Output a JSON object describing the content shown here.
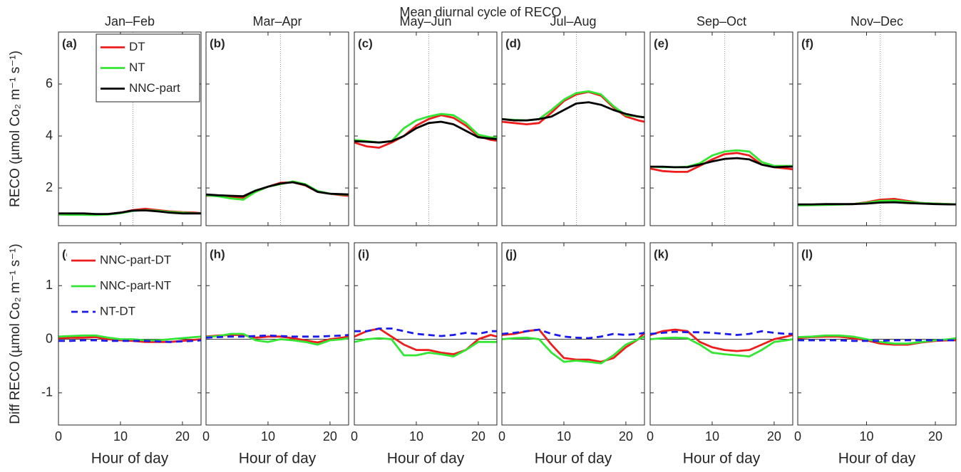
{
  "title": "Mean diurnal cycle of RECO",
  "chart_data": [
    {
      "type": "line",
      "title": "Jan–Feb",
      "tag": "(a)",
      "ylabel": "RECO (µmol Co₂ m⁻¹ s⁻¹)",
      "legend": "upper right",
      "vline": 12,
      "x": [
        0,
        2,
        4,
        6,
        8,
        10,
        12,
        14,
        16,
        18,
        20,
        22,
        23
      ],
      "xlim": [
        0,
        23
      ],
      "xticks": [
        0,
        10,
        20
      ],
      "ylim": [
        0.55,
        8
      ],
      "yticks": [
        2,
        4,
        6
      ],
      "series": [
        {
          "name": "DT",
          "color": "#ee1c1c",
          "values": [
            1.0,
            1.0,
            1.0,
            0.98,
            1.0,
            1.05,
            1.15,
            1.2,
            1.15,
            1.1,
            1.07,
            1.05,
            1.03
          ]
        },
        {
          "name": "NT",
          "color": "#33e633",
          "values": [
            0.98,
            0.97,
            0.97,
            0.96,
            0.98,
            1.03,
            1.12,
            1.15,
            1.12,
            1.08,
            1.05,
            1.03,
            1.02
          ]
        },
        {
          "name": "NNC-part",
          "color": "#000000",
          "values": [
            1.02,
            1.02,
            1.02,
            1.0,
            1.0,
            1.05,
            1.13,
            1.14,
            1.1,
            1.05,
            1.02,
            1.02,
            1.02
          ]
        }
      ]
    },
    {
      "type": "line",
      "title": "Mar–Apr",
      "tag": "(b)",
      "vline": 12,
      "x": [
        0,
        2,
        4,
        6,
        8,
        10,
        12,
        14,
        16,
        18,
        20,
        22,
        23
      ],
      "xlim": [
        0,
        23
      ],
      "xticks": [
        0,
        10,
        20
      ],
      "ylim": [
        0.55,
        8
      ],
      "yticks": [
        2,
        4,
        6
      ],
      "series": [
        {
          "color": "#ee1c1c",
          "values": [
            1.7,
            1.7,
            1.65,
            1.62,
            1.85,
            2.05,
            2.2,
            2.22,
            2.1,
            1.85,
            1.78,
            1.72,
            1.7
          ]
        },
        {
          "color": "#33e633",
          "values": [
            1.72,
            1.68,
            1.6,
            1.55,
            1.85,
            2.05,
            2.15,
            2.25,
            2.15,
            1.88,
            1.78,
            1.75,
            1.74
          ]
        },
        {
          "color": "#000000",
          "values": [
            1.75,
            1.72,
            1.7,
            1.68,
            1.9,
            2.05,
            2.17,
            2.22,
            2.12,
            1.85,
            1.78,
            1.76,
            1.75
          ]
        }
      ]
    },
    {
      "type": "line",
      "title": "May–Jun",
      "tag": "(c)",
      "vline": 12,
      "x": [
        0,
        2,
        4,
        6,
        8,
        10,
        12,
        14,
        16,
        18,
        20,
        22,
        23
      ],
      "xlim": [
        0,
        23
      ],
      "xticks": [
        0,
        10,
        20
      ],
      "ylim": [
        0.55,
        8
      ],
      "yticks": [
        2,
        4,
        6
      ],
      "series": [
        {
          "color": "#ee1c1c",
          "values": [
            3.75,
            3.6,
            3.55,
            3.75,
            4.0,
            4.4,
            4.65,
            4.8,
            4.7,
            4.4,
            4.0,
            3.85,
            3.82
          ]
        },
        {
          "color": "#33e633",
          "values": [
            3.85,
            3.8,
            3.75,
            3.8,
            4.3,
            4.6,
            4.75,
            4.85,
            4.8,
            4.5,
            4.05,
            3.95,
            3.95
          ]
        },
        {
          "color": "#000000",
          "values": [
            3.8,
            3.78,
            3.75,
            3.8,
            4.0,
            4.3,
            4.5,
            4.55,
            4.45,
            4.2,
            3.95,
            3.9,
            3.88
          ]
        }
      ]
    },
    {
      "type": "line",
      "title": "Jul–Aug",
      "tag": "(d)",
      "vline": 12,
      "x": [
        0,
        2,
        4,
        6,
        8,
        10,
        12,
        14,
        16,
        18,
        20,
        22,
        23
      ],
      "xlim": [
        0,
        23
      ],
      "xticks": [
        0,
        10,
        20
      ],
      "ylim": [
        0.55,
        8
      ],
      "yticks": [
        2,
        4,
        6
      ],
      "series": [
        {
          "color": "#ee1c1c",
          "values": [
            4.55,
            4.5,
            4.45,
            4.5,
            4.9,
            5.35,
            5.6,
            5.7,
            5.55,
            5.1,
            4.75,
            4.6,
            4.55
          ]
        },
        {
          "color": "#33e633",
          "values": [
            4.65,
            4.62,
            4.6,
            4.65,
            5.0,
            5.4,
            5.65,
            5.72,
            5.6,
            5.15,
            4.8,
            4.75,
            4.72
          ]
        },
        {
          "color": "#000000",
          "values": [
            4.65,
            4.6,
            4.6,
            4.65,
            4.75,
            5.0,
            5.25,
            5.3,
            5.2,
            5.0,
            4.85,
            4.75,
            4.72
          ]
        }
      ]
    },
    {
      "type": "line",
      "title": "Sep–Oct",
      "tag": "(e)",
      "vline": 12,
      "x": [
        0,
        2,
        4,
        6,
        8,
        10,
        12,
        14,
        16,
        18,
        20,
        22,
        23
      ],
      "xlim": [
        0,
        23
      ],
      "xticks": [
        0,
        10,
        20
      ],
      "ylim": [
        0.55,
        8
      ],
      "yticks": [
        2,
        4,
        6
      ],
      "series": [
        {
          "color": "#ee1c1c",
          "values": [
            2.75,
            2.65,
            2.62,
            2.62,
            2.85,
            3.1,
            3.3,
            3.35,
            3.25,
            2.9,
            2.8,
            2.75,
            2.72
          ]
        },
        {
          "color": "#33e633",
          "values": [
            2.82,
            2.8,
            2.8,
            2.82,
            2.95,
            3.25,
            3.4,
            3.45,
            3.4,
            3.0,
            2.85,
            2.85,
            2.85
          ]
        },
        {
          "color": "#000000",
          "values": [
            2.82,
            2.82,
            2.8,
            2.8,
            2.9,
            3.02,
            3.12,
            3.15,
            3.1,
            2.9,
            2.8,
            2.82,
            2.82
          ]
        }
      ]
    },
    {
      "type": "line",
      "title": "Nov–Dec",
      "tag": "(f)",
      "vline": 12,
      "x": [
        0,
        2,
        4,
        6,
        8,
        10,
        12,
        14,
        16,
        18,
        20,
        22,
        23
      ],
      "xlim": [
        0,
        23
      ],
      "xticks": [
        0,
        10,
        20
      ],
      "ylim": [
        0.55,
        8
      ],
      "yticks": [
        2,
        4,
        6
      ],
      "series": [
        {
          "color": "#ee1c1c",
          "values": [
            1.35,
            1.35,
            1.36,
            1.37,
            1.38,
            1.45,
            1.55,
            1.58,
            1.5,
            1.42,
            1.4,
            1.38,
            1.37
          ]
        },
        {
          "color": "#33e633",
          "values": [
            1.33,
            1.34,
            1.35,
            1.36,
            1.38,
            1.43,
            1.5,
            1.52,
            1.47,
            1.42,
            1.4,
            1.38,
            1.37
          ]
        },
        {
          "color": "#000000",
          "values": [
            1.37,
            1.37,
            1.38,
            1.38,
            1.38,
            1.4,
            1.44,
            1.45,
            1.42,
            1.4,
            1.38,
            1.37,
            1.37
          ]
        }
      ]
    },
    {
      "type": "line",
      "tag": "(g)",
      "ylabel": "Diff RECO (µmol Co₂ m⁻¹ s⁻¹)",
      "xlabel": "Hour of day",
      "legend": "upper left",
      "hline": 0,
      "x": [
        0,
        2,
        4,
        6,
        8,
        10,
        12,
        14,
        16,
        18,
        20,
        22,
        23
      ],
      "xlim": [
        0,
        23
      ],
      "xticks": [
        0,
        10,
        20
      ],
      "ylim": [
        -1.6,
        1.8
      ],
      "yticks": [
        -1,
        0,
        1
      ],
      "series": [
        {
          "name": "NNC-part-DT",
          "color": "#ee1c1c",
          "values": [
            0.02,
            0.03,
            0.03,
            0.04,
            0.0,
            -0.02,
            -0.03,
            -0.05,
            -0.05,
            -0.05,
            -0.03,
            -0.01,
            0.0
          ]
        },
        {
          "name": "NNC-part-NT",
          "color": "#33e633",
          "values": [
            0.05,
            0.06,
            0.07,
            0.07,
            0.03,
            0.0,
            0.0,
            -0.02,
            -0.02,
            0.0,
            0.02,
            0.04,
            0.05
          ]
        },
        {
          "name": "NT-DT",
          "color": "#1a1aee",
          "linestyle": "dashed",
          "values": [
            -0.03,
            -0.03,
            -0.02,
            -0.02,
            -0.03,
            -0.03,
            -0.03,
            -0.03,
            -0.04,
            -0.05,
            -0.04,
            -0.03,
            -0.02
          ]
        }
      ]
    },
    {
      "type": "line",
      "tag": "(h)",
      "xlabel": "Hour of day",
      "hline": 0,
      "x": [
        0,
        2,
        4,
        6,
        8,
        10,
        12,
        14,
        16,
        18,
        20,
        22,
        23
      ],
      "xlim": [
        0,
        23
      ],
      "xticks": [
        0,
        10,
        20
      ],
      "ylim": [
        -1.6,
        1.8
      ],
      "yticks": [
        -1,
        0,
        1
      ],
      "series": [
        {
          "color": "#ee1c1c",
          "values": [
            0.05,
            0.07,
            0.08,
            0.08,
            0.03,
            0.05,
            0.05,
            0.02,
            -0.02,
            -0.06,
            0.0,
            0.03,
            0.05
          ]
        },
        {
          "color": "#33e633",
          "values": [
            0.04,
            0.06,
            0.1,
            0.1,
            -0.02,
            -0.05,
            0.0,
            -0.02,
            -0.05,
            -0.1,
            -0.02,
            0.0,
            0.02
          ]
        },
        {
          "color": "#1a1aee",
          "linestyle": "dashed",
          "values": [
            0.03,
            0.04,
            0.05,
            0.05,
            0.06,
            0.07,
            0.06,
            0.05,
            0.05,
            0.05,
            0.06,
            0.07,
            0.08
          ]
        }
      ]
    },
    {
      "type": "line",
      "tag": "(i)",
      "xlabel": "Hour of day",
      "hline": 0,
      "x": [
        0,
        2,
        4,
        6,
        8,
        10,
        12,
        14,
        16,
        18,
        20,
        22,
        23
      ],
      "xlim": [
        0,
        23
      ],
      "xticks": [
        0,
        10,
        20
      ],
      "ylim": [
        -1.6,
        1.8
      ],
      "yticks": [
        -1,
        0,
        1
      ],
      "series": [
        {
          "color": "#ee1c1c",
          "values": [
            0.05,
            0.15,
            0.2,
            0.05,
            -0.1,
            -0.2,
            -0.2,
            -0.25,
            -0.28,
            -0.2,
            0.0,
            0.08,
            0.05
          ]
        },
        {
          "color": "#33e633",
          "values": [
            -0.05,
            0.0,
            0.02,
            0.0,
            -0.3,
            -0.3,
            -0.25,
            -0.28,
            -0.32,
            -0.2,
            -0.05,
            -0.05,
            -0.05
          ]
        },
        {
          "color": "#1a1aee",
          "linestyle": "dashed",
          "values": [
            0.15,
            0.15,
            0.2,
            0.2,
            0.15,
            0.1,
            0.08,
            0.06,
            0.08,
            0.12,
            0.1,
            0.15,
            0.15
          ]
        }
      ]
    },
    {
      "type": "line",
      "tag": "(j)",
      "xlabel": "Hour of day",
      "hline": 0,
      "x": [
        0,
        2,
        4,
        6,
        8,
        10,
        12,
        14,
        16,
        18,
        20,
        22,
        23
      ],
      "xlim": [
        0,
        23
      ],
      "xticks": [
        0,
        10,
        20
      ],
      "ylim": [
        -1.6,
        1.8
      ],
      "yticks": [
        -1,
        0,
        1
      ],
      "series": [
        {
          "color": "#ee1c1c",
          "values": [
            0.08,
            0.1,
            0.15,
            0.18,
            -0.1,
            -0.35,
            -0.38,
            -0.38,
            -0.42,
            -0.35,
            -0.15,
            0.0,
            0.12
          ]
        },
        {
          "color": "#33e633",
          "values": [
            0.0,
            0.02,
            0.03,
            0.0,
            -0.25,
            -0.42,
            -0.4,
            -0.42,
            -0.45,
            -0.3,
            -0.1,
            0.0,
            0.05
          ]
        },
        {
          "color": "#1a1aee",
          "linestyle": "dashed",
          "values": [
            0.1,
            0.12,
            0.15,
            0.18,
            0.1,
            0.05,
            0.03,
            0.02,
            0.05,
            0.1,
            0.08,
            0.1,
            0.12
          ]
        }
      ]
    },
    {
      "type": "line",
      "tag": "(k)",
      "xlabel": "Hour of day",
      "hline": 0,
      "x": [
        0,
        2,
        4,
        6,
        8,
        10,
        12,
        14,
        16,
        18,
        20,
        22,
        23
      ],
      "xlim": [
        0,
        23
      ],
      "xticks": [
        0,
        10,
        20
      ],
      "ylim": [
        -1.6,
        1.8
      ],
      "yticks": [
        -1,
        0,
        1
      ],
      "series": [
        {
          "color": "#ee1c1c",
          "values": [
            0.08,
            0.15,
            0.18,
            0.15,
            -0.05,
            -0.15,
            -0.2,
            -0.22,
            -0.2,
            -0.1,
            0.0,
            0.05,
            0.08
          ]
        },
        {
          "color": "#33e633",
          "values": [
            0.0,
            0.02,
            0.03,
            0.02,
            -0.1,
            -0.25,
            -0.28,
            -0.3,
            -0.32,
            -0.2,
            -0.05,
            -0.02,
            0.0
          ]
        },
        {
          "color": "#1a1aee",
          "linestyle": "dashed",
          "values": [
            0.1,
            0.12,
            0.14,
            0.13,
            0.13,
            0.12,
            0.1,
            0.08,
            0.1,
            0.15,
            0.12,
            0.1,
            0.1
          ]
        }
      ]
    },
    {
      "type": "line",
      "tag": "(l)",
      "xlabel": "Hour of day",
      "hline": 0,
      "x": [
        0,
        2,
        4,
        6,
        8,
        10,
        12,
        14,
        16,
        18,
        20,
        22,
        23
      ],
      "xlim": [
        0,
        23
      ],
      "xticks": [
        0,
        10,
        20
      ],
      "ylim": [
        -1.6,
        1.8
      ],
      "yticks": [
        -1,
        0,
        1
      ],
      "series": [
        {
          "color": "#ee1c1c",
          "values": [
            0.02,
            0.04,
            0.05,
            0.05,
            0.02,
            -0.02,
            -0.08,
            -0.1,
            -0.1,
            -0.06,
            -0.03,
            -0.02,
            -0.02
          ]
        },
        {
          "color": "#33e633",
          "values": [
            0.04,
            0.05,
            0.07,
            0.07,
            0.05,
            0.0,
            -0.05,
            -0.08,
            -0.08,
            -0.05,
            -0.02,
            0.0,
            0.02
          ]
        },
        {
          "color": "#1a1aee",
          "linestyle": "dashed",
          "values": [
            -0.02,
            -0.02,
            -0.02,
            -0.02,
            -0.03,
            -0.03,
            -0.03,
            -0.02,
            -0.02,
            -0.02,
            -0.02,
            -0.02,
            -0.02
          ]
        }
      ]
    }
  ]
}
